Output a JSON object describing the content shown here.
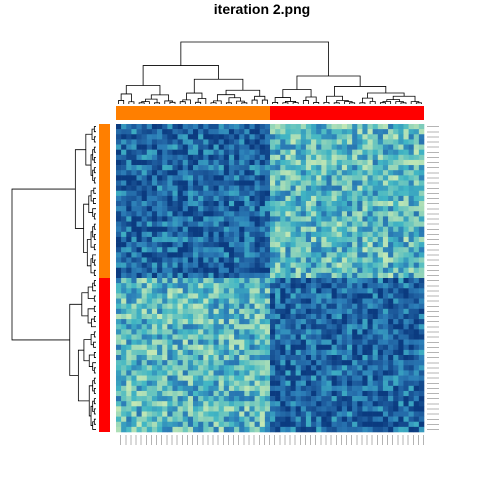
{
  "chart_data": {
    "type": "heatmap",
    "title": "iteration 2.png",
    "n_rows": 60,
    "n_cols": 60,
    "row_groups": [
      {
        "name": "",
        "count": 30,
        "color": "#ff7f00"
      },
      {
        "name": "",
        "count": 30,
        "color": "#ff0000"
      }
    ],
    "col_groups": [
      {
        "name": "",
        "count": 30,
        "color": "#ff7f00"
      },
      {
        "name": "",
        "count": 30,
        "color": "#ff0000"
      }
    ],
    "block_pattern": [
      [
        0.2,
        0.55
      ],
      [
        0.55,
        0.2
      ]
    ],
    "colormap": [
      "#0b3b80",
      "#1f5fa0",
      "#2c7fb8",
      "#41b6c4",
      "#7fcdbb",
      "#c7e9b4",
      "#edf8b1"
    ],
    "dendrograms": {
      "rows": true,
      "columns": true
    },
    "tick_labels": "unreadable"
  }
}
